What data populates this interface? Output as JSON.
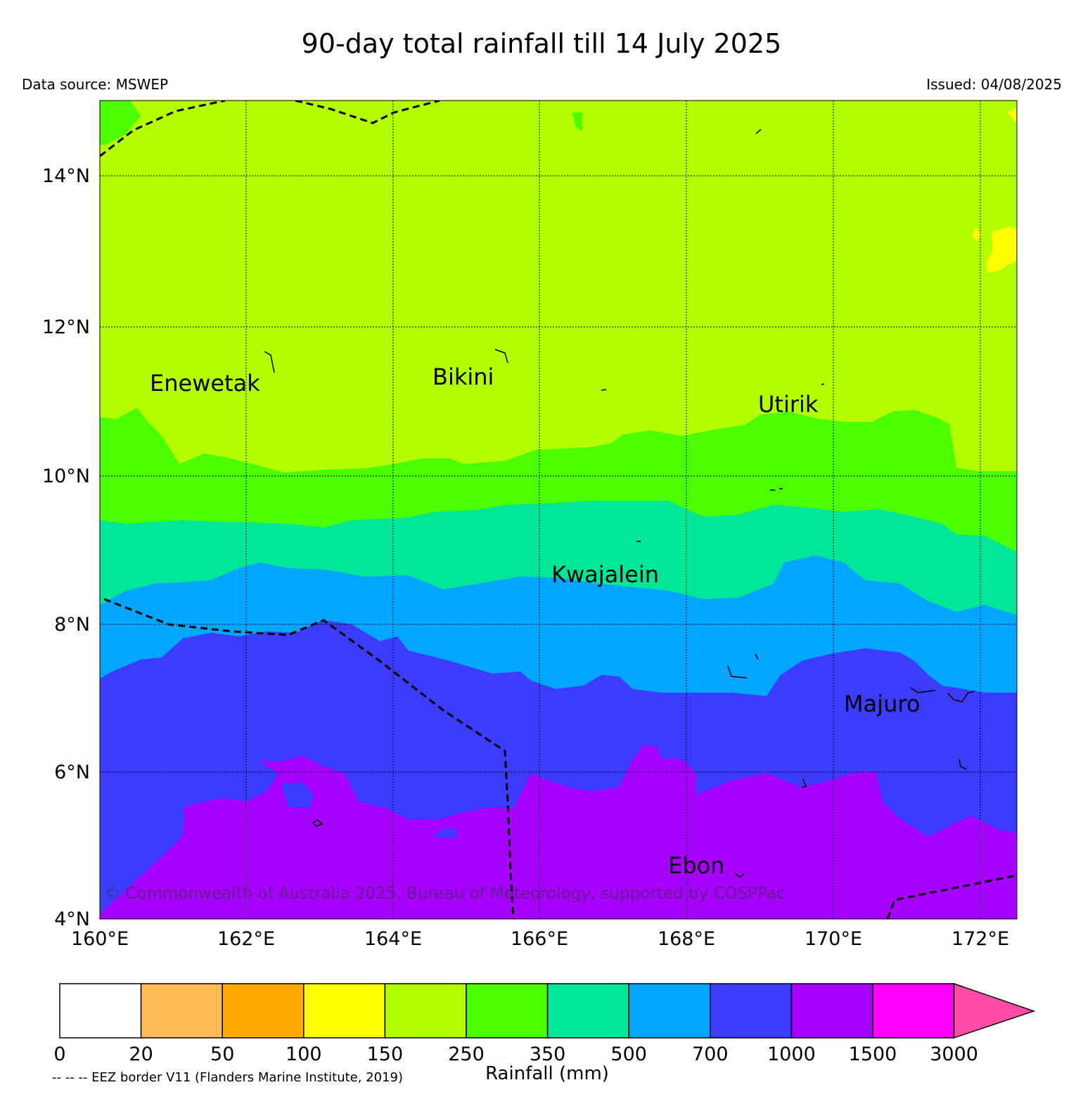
{
  "title": "90-day total rainfall till 14 July 2025",
  "data_source": "Data source: MSWEP",
  "issued": "Issued: 04/08/2025",
  "copyright": "© Commonwealth of Australia 2025, Bureau of Meteorology, supported by COSPPac",
  "map": {
    "lon_range": [
      160,
      172.5
    ],
    "lat_range": [
      4,
      15
    ],
    "lon_ticks": [
      {
        "value": 160,
        "label": "160°E"
      },
      {
        "value": 162,
        "label": "162°E"
      },
      {
        "value": 164,
        "label": "164°E"
      },
      {
        "value": 166,
        "label": "166°E"
      },
      {
        "value": 168,
        "label": "168°E"
      },
      {
        "value": 170,
        "label": "170°E"
      },
      {
        "value": 172,
        "label": "172°E"
      }
    ],
    "lat_ticks": [
      {
        "value": 4,
        "label": "4°N"
      },
      {
        "value": 6,
        "label": "6°N"
      },
      {
        "value": 8,
        "label": "8°N"
      },
      {
        "value": 10,
        "label": "10°N"
      },
      {
        "value": 12,
        "label": "12°N"
      },
      {
        "value": 14,
        "label": "14°N"
      }
    ],
    "places": [
      {
        "name": "Enewetak"
      },
      {
        "name": "Bikini"
      },
      {
        "name": "Utirik"
      },
      {
        "name": "Kwajalein"
      },
      {
        "name": "Majuro"
      },
      {
        "name": "Ebon"
      }
    ]
  },
  "colorbar": {
    "label": "Rainfall (mm)",
    "ticks": [
      "0",
      "20",
      "50",
      "100",
      "150",
      "250",
      "350",
      "500",
      "700",
      "1000",
      "1500",
      "3000"
    ],
    "colors": [
      "#ffffff",
      "#ffbb55",
      "#ffaa00",
      "#ffff00",
      "#b3ff00",
      "#4cff00",
      "#00e699",
      "#00a6ff",
      "#3c3cff",
      "#a600ff",
      "#ff00ff",
      "#ff4da6"
    ]
  },
  "eez_note": "-- -- -- EEZ border V11 (Flanders Marine Institute, 2019)"
}
